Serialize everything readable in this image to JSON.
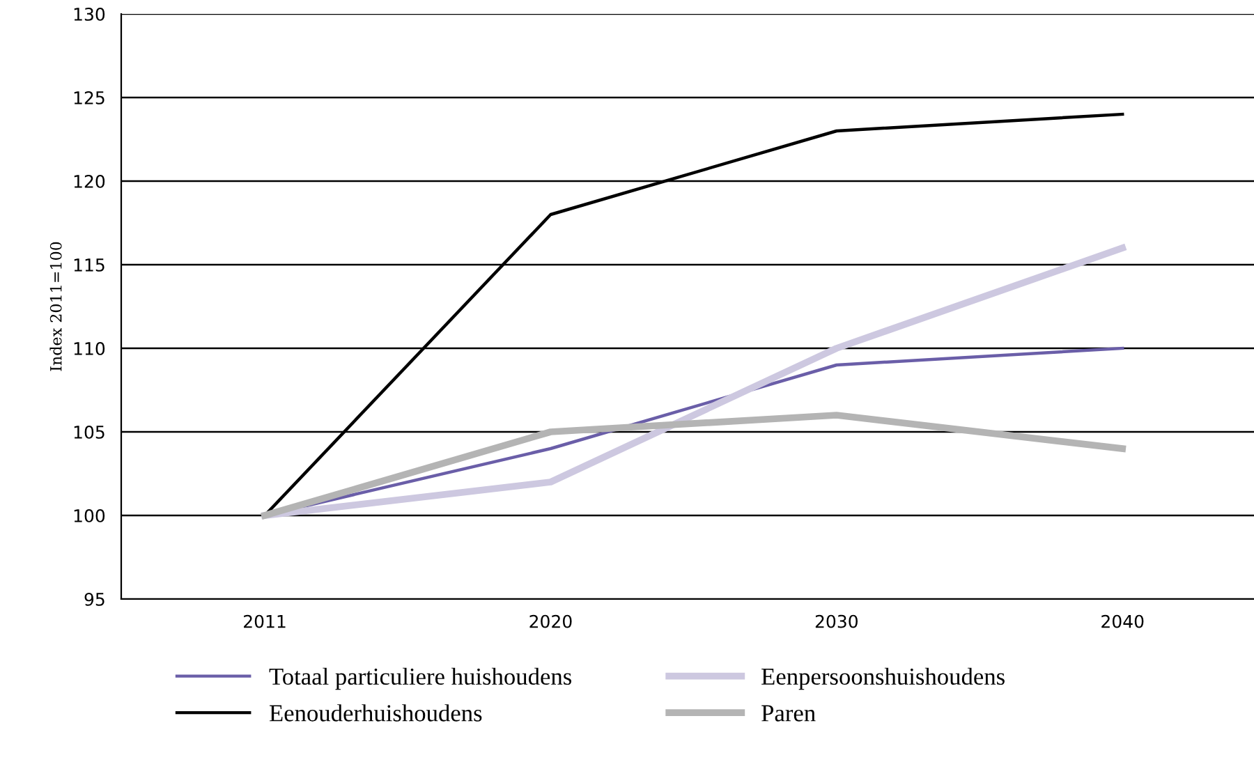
{
  "chart_data": {
    "type": "line",
    "ylabel": "Index 2011=100",
    "categories": [
      "2011",
      "2020",
      "2030",
      "2040"
    ],
    "series": [
      {
        "name": "Totaal particuliere huishoudens",
        "color": "#6a5ea8",
        "values": [
          100,
          104,
          109,
          110
        ]
      },
      {
        "name": "Eenouderhuishoudens",
        "color": "#000000",
        "values": [
          100,
          118,
          123,
          124
        ]
      },
      {
        "name": "Eenpersoonshuishoudens",
        "color": "#cdc8e0",
        "values": [
          100,
          102,
          110,
          116
        ]
      },
      {
        "name": "Paren",
        "color": "#b4b4b4",
        "values": [
          100,
          105,
          106,
          104
        ]
      }
    ],
    "ylim": [
      95,
      130
    ],
    "yticks": [
      95,
      100,
      105,
      110,
      115,
      120,
      125,
      130
    ],
    "grid": "y",
    "legend": "bottom",
    "marker": "none",
    "line_style": "solid"
  }
}
